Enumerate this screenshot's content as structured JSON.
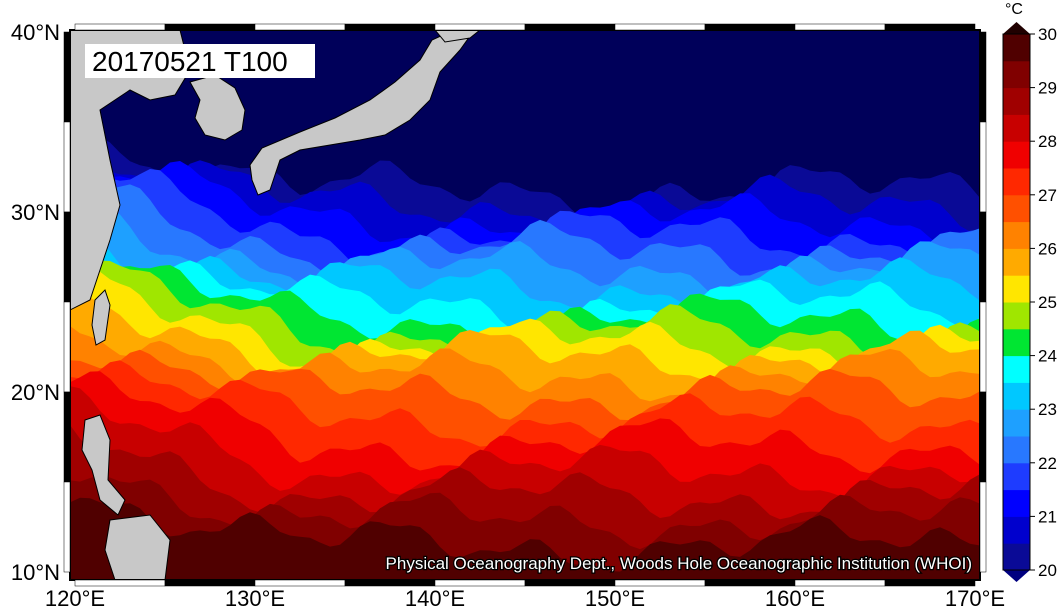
{
  "map": {
    "label": "20170521 T100",
    "credit": "Physical Oceanography Dept., Woods Hole Oceanographic Institution (WHOI)",
    "x_ticks": [
      "120°E",
      "130°E",
      "140°E",
      "150°E",
      "160°E",
      "170°E"
    ],
    "y_ticks": [
      "40°N",
      "30°N",
      "20°N",
      "10°N"
    ]
  },
  "colorbar": {
    "unit": "°C",
    "ticks": [
      20,
      21,
      22,
      23,
      24,
      25,
      26,
      27,
      28,
      29,
      30
    ],
    "colors": [
      "#0a0a96",
      "#0000cd",
      "#0000ff",
      "#1e3cff",
      "#2878ff",
      "#1ea0ff",
      "#00c8ff",
      "#00ffff",
      "#00e632",
      "#a0e600",
      "#ffe600",
      "#ffaa00",
      "#ff8200",
      "#ff5000",
      "#ff2800",
      "#f00000",
      "#c80000",
      "#a00000",
      "#800000",
      "#500000"
    ],
    "under_color": "#000080",
    "over_color": "#200000"
  }
}
